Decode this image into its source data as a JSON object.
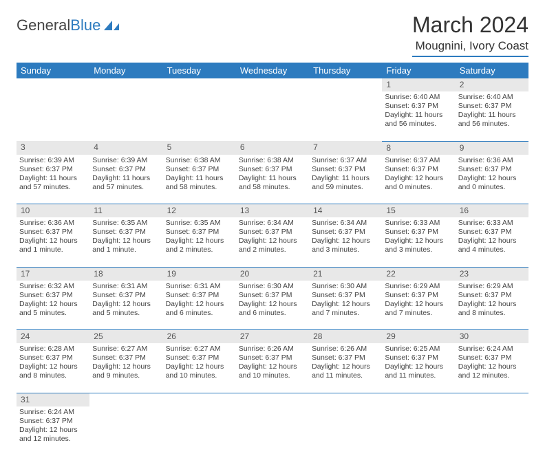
{
  "logo": {
    "text1": "General",
    "text2": "Blue",
    "sail_color": "#2d7bbf"
  },
  "title": "March 2024",
  "location": "Mougnini, Ivory Coast",
  "header_bg": "#2d7bbf",
  "header_fg": "#ffffff",
  "daynum_bg": "#e8e8e8",
  "rule_color": "#2d7bbf",
  "weekdays": [
    "Sunday",
    "Monday",
    "Tuesday",
    "Wednesday",
    "Thursday",
    "Friday",
    "Saturday"
  ],
  "weeks": [
    [
      null,
      null,
      null,
      null,
      null,
      {
        "n": "1",
        "sr": "Sunrise: 6:40 AM",
        "ss": "Sunset: 6:37 PM",
        "dl1": "Daylight: 11 hours",
        "dl2": "and 56 minutes."
      },
      {
        "n": "2",
        "sr": "Sunrise: 6:40 AM",
        "ss": "Sunset: 6:37 PM",
        "dl1": "Daylight: 11 hours",
        "dl2": "and 56 minutes."
      }
    ],
    [
      {
        "n": "3",
        "sr": "Sunrise: 6:39 AM",
        "ss": "Sunset: 6:37 PM",
        "dl1": "Daylight: 11 hours",
        "dl2": "and 57 minutes."
      },
      {
        "n": "4",
        "sr": "Sunrise: 6:39 AM",
        "ss": "Sunset: 6:37 PM",
        "dl1": "Daylight: 11 hours",
        "dl2": "and 57 minutes."
      },
      {
        "n": "5",
        "sr": "Sunrise: 6:38 AM",
        "ss": "Sunset: 6:37 PM",
        "dl1": "Daylight: 11 hours",
        "dl2": "and 58 minutes."
      },
      {
        "n": "6",
        "sr": "Sunrise: 6:38 AM",
        "ss": "Sunset: 6:37 PM",
        "dl1": "Daylight: 11 hours",
        "dl2": "and 58 minutes."
      },
      {
        "n": "7",
        "sr": "Sunrise: 6:37 AM",
        "ss": "Sunset: 6:37 PM",
        "dl1": "Daylight: 11 hours",
        "dl2": "and 59 minutes."
      },
      {
        "n": "8",
        "sr": "Sunrise: 6:37 AM",
        "ss": "Sunset: 6:37 PM",
        "dl1": "Daylight: 12 hours",
        "dl2": "and 0 minutes."
      },
      {
        "n": "9",
        "sr": "Sunrise: 6:36 AM",
        "ss": "Sunset: 6:37 PM",
        "dl1": "Daylight: 12 hours",
        "dl2": "and 0 minutes."
      }
    ],
    [
      {
        "n": "10",
        "sr": "Sunrise: 6:36 AM",
        "ss": "Sunset: 6:37 PM",
        "dl1": "Daylight: 12 hours",
        "dl2": "and 1 minute."
      },
      {
        "n": "11",
        "sr": "Sunrise: 6:35 AM",
        "ss": "Sunset: 6:37 PM",
        "dl1": "Daylight: 12 hours",
        "dl2": "and 1 minute."
      },
      {
        "n": "12",
        "sr": "Sunrise: 6:35 AM",
        "ss": "Sunset: 6:37 PM",
        "dl1": "Daylight: 12 hours",
        "dl2": "and 2 minutes."
      },
      {
        "n": "13",
        "sr": "Sunrise: 6:34 AM",
        "ss": "Sunset: 6:37 PM",
        "dl1": "Daylight: 12 hours",
        "dl2": "and 2 minutes."
      },
      {
        "n": "14",
        "sr": "Sunrise: 6:34 AM",
        "ss": "Sunset: 6:37 PM",
        "dl1": "Daylight: 12 hours",
        "dl2": "and 3 minutes."
      },
      {
        "n": "15",
        "sr": "Sunrise: 6:33 AM",
        "ss": "Sunset: 6:37 PM",
        "dl1": "Daylight: 12 hours",
        "dl2": "and 3 minutes."
      },
      {
        "n": "16",
        "sr": "Sunrise: 6:33 AM",
        "ss": "Sunset: 6:37 PM",
        "dl1": "Daylight: 12 hours",
        "dl2": "and 4 minutes."
      }
    ],
    [
      {
        "n": "17",
        "sr": "Sunrise: 6:32 AM",
        "ss": "Sunset: 6:37 PM",
        "dl1": "Daylight: 12 hours",
        "dl2": "and 5 minutes."
      },
      {
        "n": "18",
        "sr": "Sunrise: 6:31 AM",
        "ss": "Sunset: 6:37 PM",
        "dl1": "Daylight: 12 hours",
        "dl2": "and 5 minutes."
      },
      {
        "n": "19",
        "sr": "Sunrise: 6:31 AM",
        "ss": "Sunset: 6:37 PM",
        "dl1": "Daylight: 12 hours",
        "dl2": "and 6 minutes."
      },
      {
        "n": "20",
        "sr": "Sunrise: 6:30 AM",
        "ss": "Sunset: 6:37 PM",
        "dl1": "Daylight: 12 hours",
        "dl2": "and 6 minutes."
      },
      {
        "n": "21",
        "sr": "Sunrise: 6:30 AM",
        "ss": "Sunset: 6:37 PM",
        "dl1": "Daylight: 12 hours",
        "dl2": "and 7 minutes."
      },
      {
        "n": "22",
        "sr": "Sunrise: 6:29 AM",
        "ss": "Sunset: 6:37 PM",
        "dl1": "Daylight: 12 hours",
        "dl2": "and 7 minutes."
      },
      {
        "n": "23",
        "sr": "Sunrise: 6:29 AM",
        "ss": "Sunset: 6:37 PM",
        "dl1": "Daylight: 12 hours",
        "dl2": "and 8 minutes."
      }
    ],
    [
      {
        "n": "24",
        "sr": "Sunrise: 6:28 AM",
        "ss": "Sunset: 6:37 PM",
        "dl1": "Daylight: 12 hours",
        "dl2": "and 8 minutes."
      },
      {
        "n": "25",
        "sr": "Sunrise: 6:27 AM",
        "ss": "Sunset: 6:37 PM",
        "dl1": "Daylight: 12 hours",
        "dl2": "and 9 minutes."
      },
      {
        "n": "26",
        "sr": "Sunrise: 6:27 AM",
        "ss": "Sunset: 6:37 PM",
        "dl1": "Daylight: 12 hours",
        "dl2": "and 10 minutes."
      },
      {
        "n": "27",
        "sr": "Sunrise: 6:26 AM",
        "ss": "Sunset: 6:37 PM",
        "dl1": "Daylight: 12 hours",
        "dl2": "and 10 minutes."
      },
      {
        "n": "28",
        "sr": "Sunrise: 6:26 AM",
        "ss": "Sunset: 6:37 PM",
        "dl1": "Daylight: 12 hours",
        "dl2": "and 11 minutes."
      },
      {
        "n": "29",
        "sr": "Sunrise: 6:25 AM",
        "ss": "Sunset: 6:37 PM",
        "dl1": "Daylight: 12 hours",
        "dl2": "and 11 minutes."
      },
      {
        "n": "30",
        "sr": "Sunrise: 6:24 AM",
        "ss": "Sunset: 6:37 PM",
        "dl1": "Daylight: 12 hours",
        "dl2": "and 12 minutes."
      }
    ],
    [
      {
        "n": "31",
        "sr": "Sunrise: 6:24 AM",
        "ss": "Sunset: 6:37 PM",
        "dl1": "Daylight: 12 hours",
        "dl2": "and 12 minutes."
      },
      null,
      null,
      null,
      null,
      null,
      null
    ]
  ]
}
